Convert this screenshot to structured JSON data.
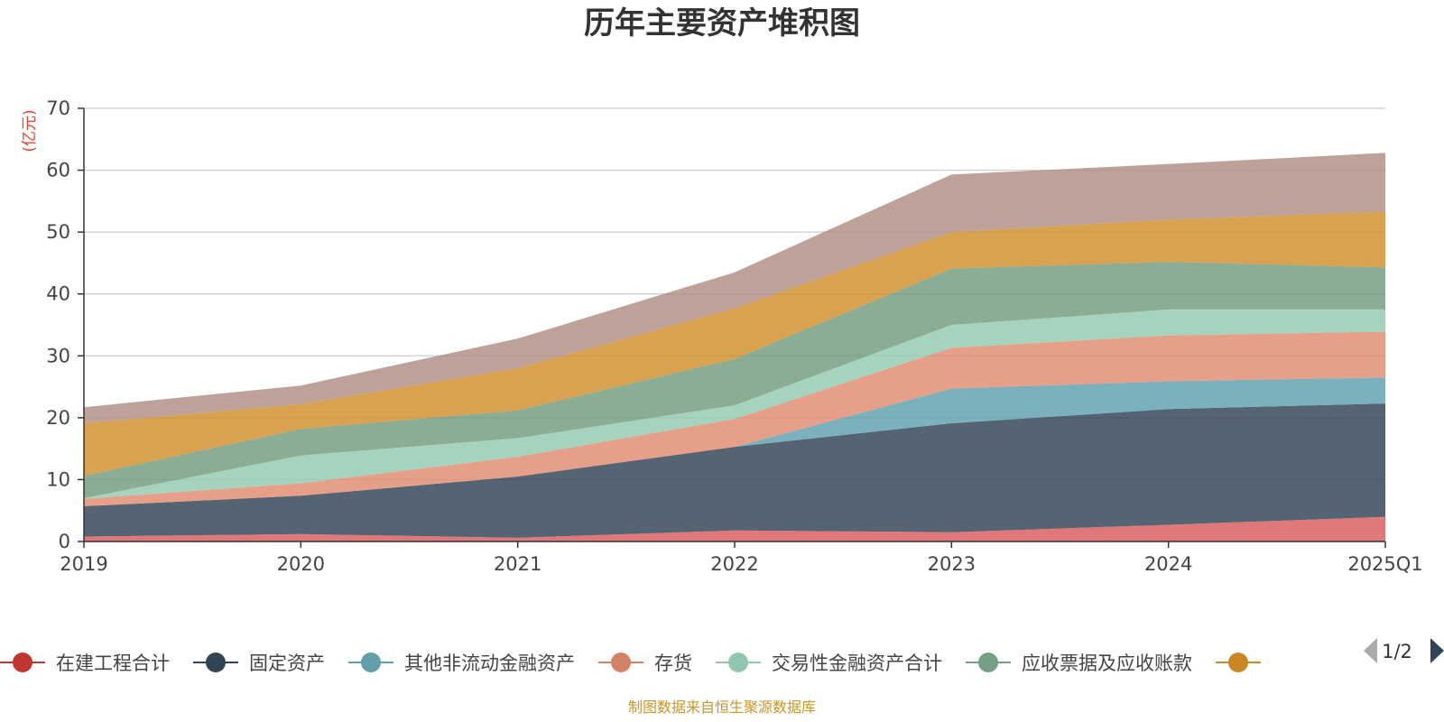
{
  "chart_data": {
    "type": "area",
    "stacked": true,
    "title": "历年主要资产堆积图",
    "ylabel": "(亿元)",
    "xlabel": "",
    "ylim": [
      0,
      70
    ],
    "yticks": [
      0,
      10,
      20,
      30,
      40,
      50,
      60,
      70
    ],
    "grid": true,
    "categories": [
      "2019",
      "2020",
      "2021",
      "2022",
      "2023",
      "2024",
      "2025Q1"
    ],
    "series": [
      {
        "name": "在建工程合计",
        "color": "#d9595a",
        "values": [
          0.8,
          1.2,
          0.6,
          1.8,
          1.5,
          2.7,
          4.0
        ]
      },
      {
        "name": "固定资产",
        "color": "#2e4254",
        "values": [
          4.9,
          6.2,
          9.9,
          13.5,
          17.6,
          18.7,
          18.3
        ]
      },
      {
        "name": "其他非流动金融资产",
        "color": "#5e9fae",
        "values": [
          0,
          0,
          0,
          0,
          5.6,
          4.5,
          4.2
        ]
      },
      {
        "name": "存货",
        "color": "#e08a6e",
        "values": [
          1.2,
          2.0,
          3.2,
          4.5,
          6.6,
          7.4,
          7.4
        ]
      },
      {
        "name": "交易性金融资产合计",
        "color": "#93c9af",
        "values": [
          0.1,
          4.5,
          3.0,
          2.2,
          3.7,
          4.2,
          3.6
        ]
      },
      {
        "name": "应收票据及应收账款",
        "color": "#729b7d",
        "values": [
          3.6,
          4.3,
          4.5,
          7.5,
          9.1,
          7.7,
          6.8
        ]
      },
      {
        "name": "",
        "color": "#cf8e2a",
        "values": [
          8.5,
          4.0,
          6.8,
          8.2,
          5.9,
          6.8,
          9.0
        ]
      },
      {
        "name": "",
        "color": "#b08d83",
        "values": [
          2.6,
          3.0,
          4.8,
          5.8,
          9.3,
          9.0,
          9.5
        ]
      }
    ]
  },
  "legend": {
    "items": [
      {
        "name": "在建工程合计",
        "color": "#c23531"
      },
      {
        "name": "固定资产",
        "color": "#2f4554"
      },
      {
        "name": "其他非流动金融资产",
        "color": "#61a0a8"
      },
      {
        "name": "存货",
        "color": "#d48265"
      },
      {
        "name": "交易性金融资产合计",
        "color": "#91c7ae"
      },
      {
        "name": "应收票据及应收账款",
        "color": "#749f83"
      },
      {
        "name": "",
        "color": "#ca8622"
      }
    ],
    "page": "1/2"
  },
  "source": "制图数据来自恒生聚源数据库"
}
